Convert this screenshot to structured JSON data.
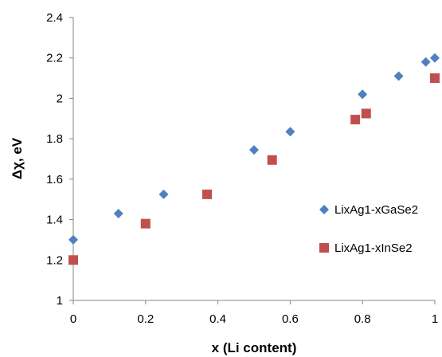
{
  "chart_data": {
    "type": "scatter",
    "title": "",
    "xlabel": "x (Li content)",
    "ylabel": "Δχ, eV",
    "xlim": [
      0,
      1
    ],
    "ylim": [
      1,
      2.4
    ],
    "x_ticks": [
      "0",
      "0.2",
      "0.4",
      "0.6",
      "0.8",
      "1"
    ],
    "y_ticks": [
      "1",
      "1.2",
      "1.4",
      "1.6",
      "1.8",
      "2",
      "2.2",
      "2.4"
    ],
    "grid": false,
    "legend_position": "right",
    "series": [
      {
        "name": "LixAg1-xGaSe2",
        "marker": "diamond",
        "color": "#4F81BD",
        "x": [
          0,
          0.125,
          0.25,
          0.5,
          0.6,
          0.8,
          0.9,
          0.975,
          1
        ],
        "y": [
          1.3,
          1.43,
          1.525,
          1.745,
          1.835,
          2.02,
          2.11,
          2.18,
          2.2
        ]
      },
      {
        "name": "LixAg1-xInSe2",
        "marker": "square",
        "color": "#C0504D",
        "x": [
          0,
          0.2,
          0.37,
          0.55,
          0.78,
          0.81,
          1
        ],
        "y": [
          1.2,
          1.38,
          1.525,
          1.695,
          1.895,
          1.925,
          2.1
        ]
      }
    ]
  }
}
